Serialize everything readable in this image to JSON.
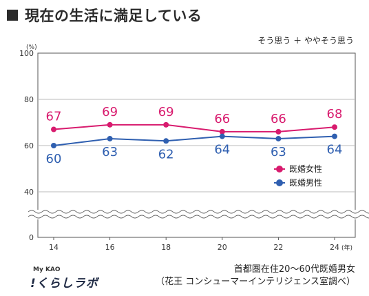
{
  "header": {
    "title": "現在の生活に満足している"
  },
  "note": "そう思う ＋ ややそう思う",
  "chart_data": {
    "type": "line",
    "x": [
      14,
      16,
      18,
      20,
      22,
      24
    ],
    "x_unit": "(年)",
    "y_unit": "(%)",
    "yticks": [
      0,
      40,
      60,
      80,
      100
    ],
    "ylim": [
      0,
      100
    ],
    "axis_break": "between 0 and 40",
    "grid": true,
    "legend_position": "right",
    "series": [
      {
        "name": "既婚女性",
        "color": "#d81b6e",
        "values": [
          67,
          69,
          69,
          66,
          66,
          68
        ]
      },
      {
        "name": "既婚男性",
        "color": "#2f5fb0",
        "values": [
          60,
          63,
          62,
          64,
          63,
          64
        ]
      }
    ]
  },
  "source": {
    "line1": "首都圏在住20～60代既婚男女",
    "line2": "（花王 コンシューマーインテリジェンス室調べ）"
  },
  "logo": {
    "top": "My KAO",
    "bottom": "!くらしラボ"
  }
}
